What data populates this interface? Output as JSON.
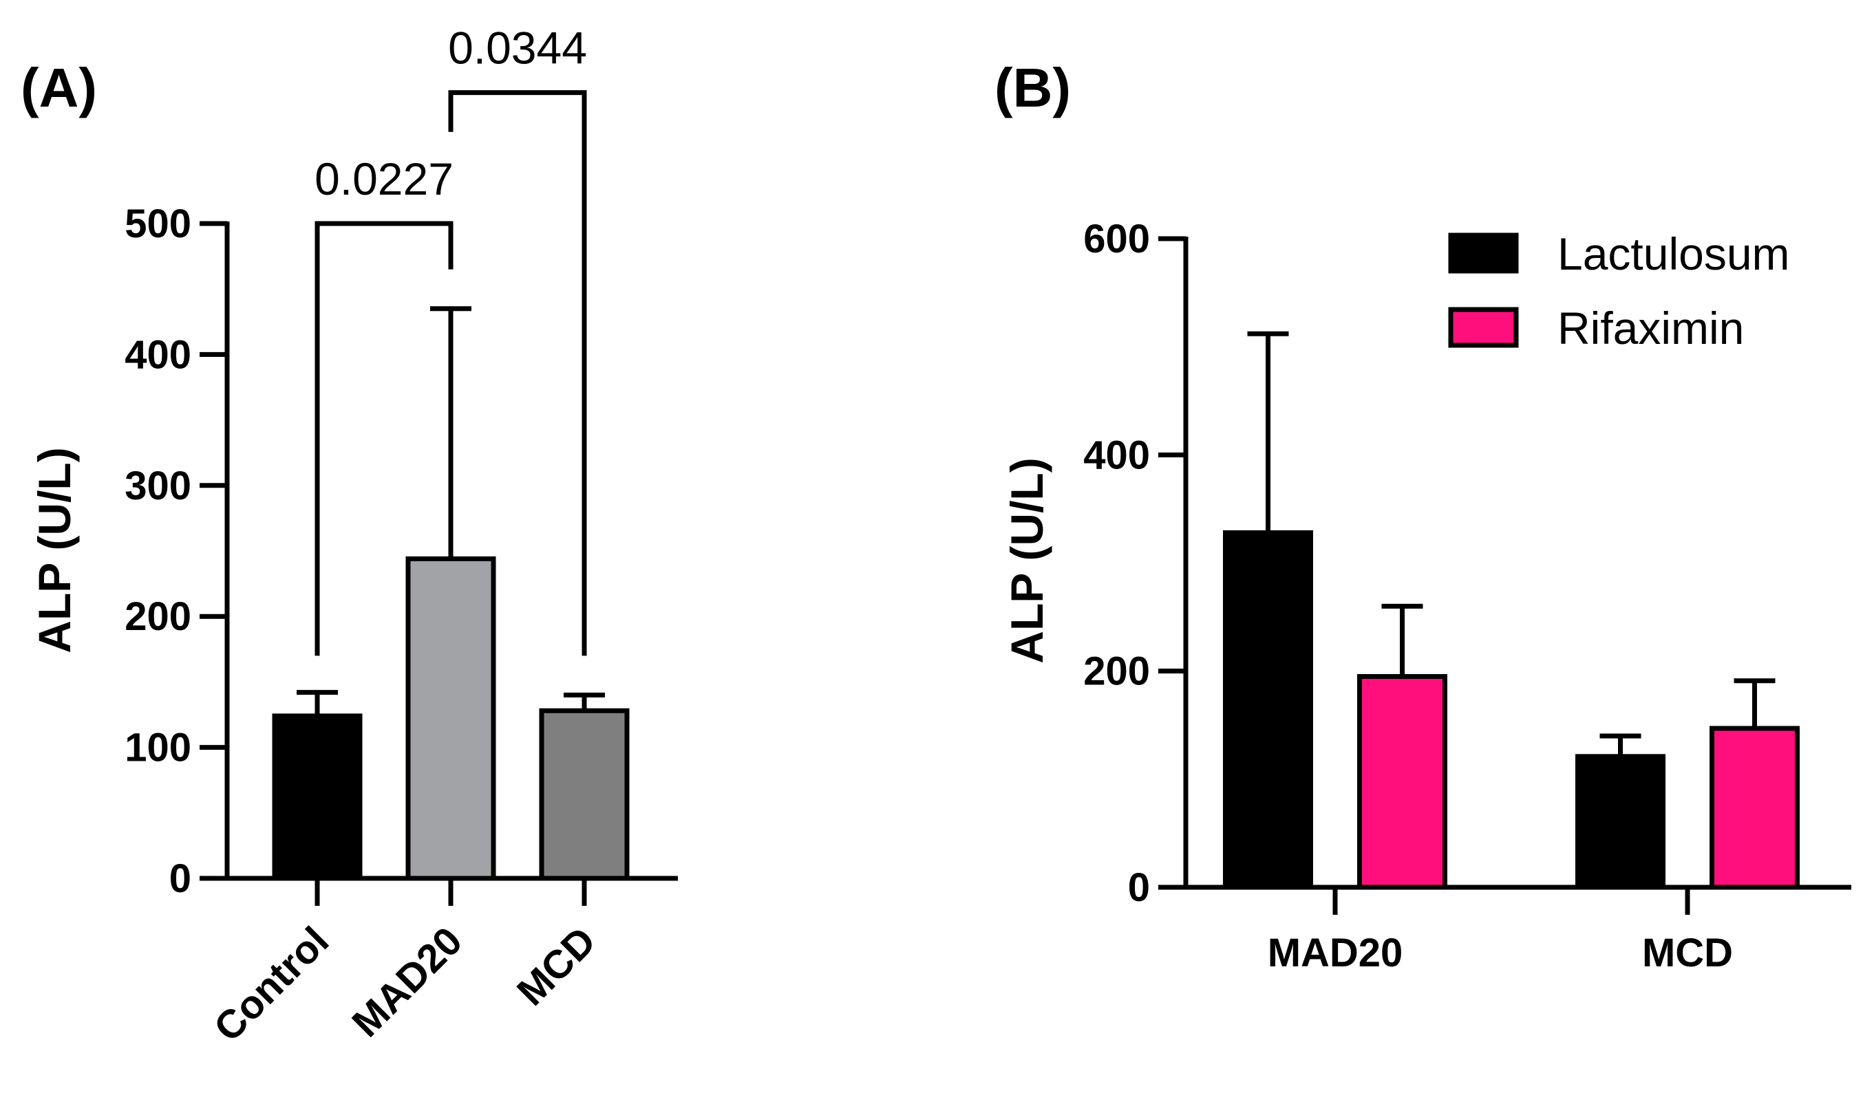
{
  "chart_data": [
    {
      "type": "bar",
      "panel_label": "(A)",
      "title": "",
      "xlabel": "",
      "ylabel": "ALP (U/L)",
      "ylim": [
        0,
        500
      ],
      "yticks": [
        0,
        100,
        200,
        300,
        400,
        500
      ],
      "categories": [
        "Control",
        "MAD20",
        "MCD"
      ],
      "values": [
        124,
        244,
        128
      ],
      "error": [
        18,
        191,
        12
      ],
      "colors": [
        "#000000",
        "#a2a3a7",
        "#7f7f7f"
      ],
      "annotations": [
        {
          "from": "Control",
          "to": "MAD20",
          "label": "0.0227"
        },
        {
          "from": "MAD20",
          "to": "MCD",
          "label": "0.0344"
        }
      ]
    },
    {
      "type": "bar",
      "panel_label": "(B)",
      "title": "",
      "xlabel": "",
      "ylabel": "ALP (U/L)",
      "ylim": [
        0,
        600
      ],
      "yticks": [
        0,
        200,
        400,
        600
      ],
      "categories": [
        "MAD20",
        "MCD"
      ],
      "series": [
        {
          "name": "Lactulosum",
          "color": "#000000",
          "values": [
            328,
            121
          ],
          "error": [
            184,
            19
          ]
        },
        {
          "name": "Rifaximin",
          "color": "#ff0f7b",
          "values": [
            195,
            147
          ],
          "error": [
            65,
            44
          ]
        }
      ],
      "legend_position": "top-right"
    }
  ]
}
